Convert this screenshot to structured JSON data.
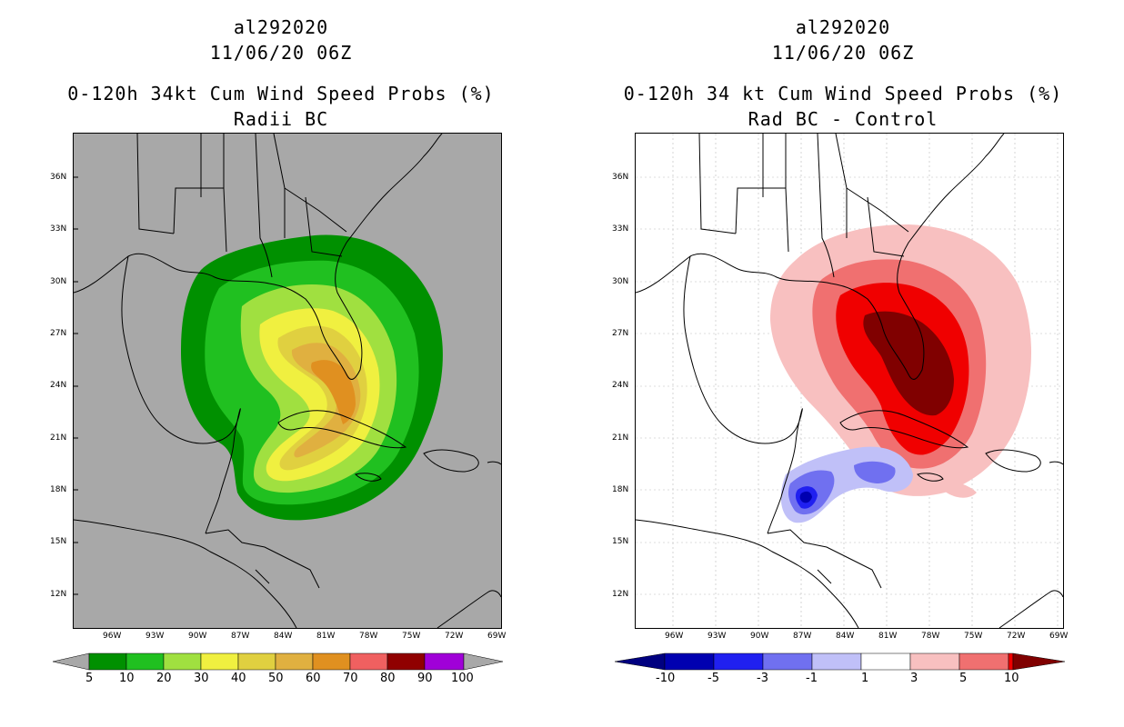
{
  "left": {
    "title_storm": "al292020",
    "title_time": "11/06/20 06Z",
    "title_product": "0-120h 34kt Cum Wind Speed Probs (%)",
    "title_sub": "Radii BC",
    "colorbar_labels": [
      "5",
      "10",
      "20",
      "30",
      "40",
      "50",
      "60",
      "70",
      "80",
      "90",
      "100"
    ],
    "colorbar_colors": [
      "#009000",
      "#20c020",
      "#a0e040",
      "#f0f040",
      "#e0d040",
      "#e0b040",
      "#e09020",
      "#f06060",
      "#900000",
      "#a000d8"
    ]
  },
  "right": {
    "title_storm": "al292020",
    "title_time": "11/06/20 06Z",
    "title_product": "0-120h 34 kt Cum Wind Speed Probs (%)",
    "title_sub": "Rad BC - Control",
    "colorbar_labels": [
      "-10",
      "-5",
      "-3",
      "-1",
      "1",
      "3",
      "5",
      "10"
    ],
    "colorbar_colors": [
      "#0000b0",
      "#2020f0",
      "#7070f0",
      "#c0c0f8",
      "#ffffff",
      "#f8c0c0",
      "#f07070",
      "#f00000",
      "#800000"
    ]
  },
  "axes": {
    "lat_labels": [
      "36N",
      "33N",
      "30N",
      "27N",
      "24N",
      "21N",
      "18N",
      "15N",
      "12N"
    ],
    "lon_labels": [
      "96W",
      "93W",
      "90W",
      "87W",
      "84W",
      "81W",
      "78W",
      "75W",
      "72W",
      "69W"
    ]
  }
}
